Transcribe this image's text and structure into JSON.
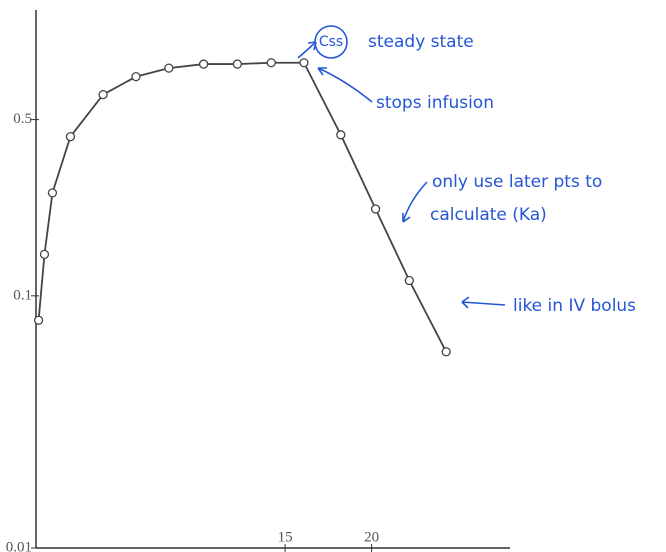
{
  "chart_data": {
    "type": "line",
    "log_scale_y": true,
    "x": [
      0.75,
      1.09,
      1.55,
      2.59,
      4.48,
      6.38,
      8.28,
      10.29,
      12.24,
      14.2,
      16.09,
      18.22,
      20.23,
      22.18,
      24.31
    ],
    "values": [
      0.08,
      0.146,
      0.256,
      0.428,
      0.628,
      0.74,
      0.8,
      0.83,
      0.83,
      0.84,
      0.84,
      0.435,
      0.221,
      0.115,
      0.06
    ],
    "color": "#444444",
    "xlim": [
      0.6,
      28
    ],
    "xticks": [
      15,
      20
    ],
    "ylim": [
      0.01,
      1.36
    ],
    "yticks": [
      0.01,
      0.1,
      0.5
    ],
    "annotations": [
      "Css",
      "steady state",
      "stops infusion",
      "only use later pts to",
      "calculate (Ka)",
      "like in IV bolus"
    ]
  }
}
